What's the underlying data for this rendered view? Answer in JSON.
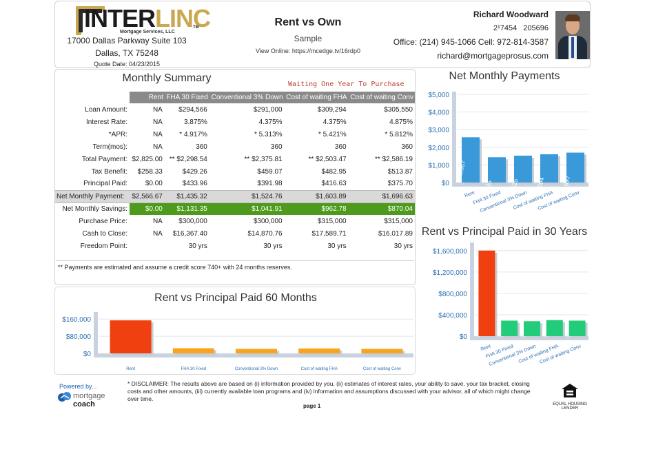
{
  "header": {
    "logo_text_a": "INTER",
    "logo_text_b": "LINC",
    "logo_sub": "Mortgage Services, LLC",
    "logo_tm": "TM",
    "address1": "17000 Dallas Parkway Suite 103",
    "address2": "Dallas, TX 75248",
    "quote_date": "Quote Date: 04/23/2015",
    "title": "Rent vs Own",
    "subtitle": "Sample",
    "view_online": "View Online: https://mcedge.tv/16rdp0",
    "agent_name": "Richard Woodward",
    "agent_nums": "2¹7454 205696",
    "agent_phone": "Office: (214) 945-1066 Cell: 972-814-3587",
    "agent_email": "richard@mortgageprosus.com"
  },
  "summary": {
    "title": "Monthly Summary",
    "waiting": "Waiting One Year To Purchase",
    "columns": [
      "Rent",
      "FHA 30 Fixed",
      "Conventional 3% Down",
      "Cost of waiting FHA",
      "Cost of waiting Conv"
    ],
    "rows": [
      {
        "label": "Loan Amount:",
        "values": [
          "NA",
          "$294,566",
          "$291,000",
          "$309,294",
          "$305,550"
        ]
      },
      {
        "label": "Interest Rate:",
        "values": [
          "NA",
          "3.875%",
          "4.375%",
          "4.375%",
          "4.875%"
        ]
      },
      {
        "label": "*APR:",
        "values": [
          "NA",
          "* 4.917%",
          "* 5.313%",
          "* 5.421%",
          "* 5.812%"
        ]
      },
      {
        "label": "Term(mos):",
        "values": [
          "NA",
          "360",
          "360",
          "360",
          "360"
        ]
      },
      {
        "label": "Total Payment:",
        "values": [
          "$2,825.00",
          "** $2,298.54",
          "** $2,375.81",
          "** $2,503.47",
          "** $2,586.19"
        ]
      },
      {
        "label": "Tax Benefit:",
        "values": [
          "$258.33",
          "$429.26",
          "$459.07",
          "$482.95",
          "$513.87"
        ]
      },
      {
        "label": "Principal Paid:",
        "values": [
          "$0.00",
          "$433.96",
          "$391.98",
          "$416.63",
          "$375.70"
        ]
      }
    ],
    "net_row": {
      "label": "Net Monthly Payment:",
      "values": [
        "$2,566.67",
        "$1,435.32",
        "$1,524.76",
        "$1,603.89",
        "$1,696.63"
      ]
    },
    "savings_row": {
      "label": "Net Monthly Savings:",
      "values": [
        "$0.00",
        "$1,131.35",
        "$1,041.91",
        "$962.78",
        "$870.04"
      ]
    },
    "rows_after": [
      {
        "label": "Purchase Price:",
        "values": [
          "NA",
          "$300,000",
          "$300,000",
          "$315,000",
          "$315,000"
        ]
      },
      {
        "label": "Cash to Close:",
        "values": [
          "NA",
          "$16,367.40",
          "$14,870.76",
          "$17,589.71",
          "$16,017.89"
        ]
      },
      {
        "label": "Freedom Point:",
        "values": [
          "",
          "30 yrs",
          "30 yrs",
          "30 yrs",
          "30 yrs"
        ]
      }
    ],
    "note": "** Payments are estimated and assume a credit score 740+ with 24 months reserves."
  },
  "chart_data": [
    {
      "type": "bar",
      "title": "Net Monthly Payments",
      "categories": [
        "Rent",
        "FHA 30 Fixed",
        "Conventional 3% Down",
        "Cost of waiting FHA",
        "Cost of waiting Conv"
      ],
      "values": [
        2567,
        1435,
        1525,
        1604,
        1697
      ],
      "data_labels": [
        "$2,567",
        "$1,435",
        "$1,525",
        "$1,604",
        "$1,697"
      ],
      "yticks": [
        "$0",
        "$1,000",
        "$2,000",
        "$3,000",
        "$4,000",
        "$5,000"
      ],
      "ylim": [
        0,
        5000
      ],
      "colors": [
        "#3a9ad9",
        "#3a9ad9",
        "#3a9ad9",
        "#3a9ad9",
        "#3a9ad9"
      ]
    },
    {
      "type": "bar",
      "title": "Rent vs Principal Paid in 30 Years",
      "categories": [
        "Rent",
        "FHA 30 Fixed",
        "Conventional 3% Down",
        "Cost of waiting FHA",
        "Cost of waiting Conv"
      ],
      "values": [
        1600000,
        290000,
        280000,
        300000,
        290000
      ],
      "yticks": [
        "$0",
        "$400,000",
        "$800,000",
        "$1,200,000",
        "$1,600,000"
      ],
      "ylim": [
        0,
        1700000
      ],
      "colors": [
        "#f04010",
        "#22cc7a",
        "#22cc7a",
        "#22cc7a",
        "#22cc7a"
      ]
    },
    {
      "type": "bar",
      "title": "Rent vs Principal Paid 60 Months",
      "categories": [
        "Rent",
        "FHA 30 Fixed",
        "Conventional 3% Down",
        "Cost of waiting FHA",
        "Cost of waiting Conv"
      ],
      "values": [
        154000,
        24000,
        21000,
        23000,
        21000
      ],
      "yticks": [
        "$0",
        "$80,000",
        "$160,000"
      ],
      "ylim": [
        0,
        180000
      ],
      "colors": [
        "#f04010",
        "#f8a41f",
        "#f8a41f",
        "#f8a41f",
        "#f8a41f"
      ]
    }
  ],
  "footer": {
    "powered_by": "Powered by...",
    "mc_a": "mortgage",
    "mc_b": "coach",
    "disclaimer": "* DISCLAIMER: The results above are based on (i) information provided by you, (ii) estimates of interest rates, your ability to save, your tax bracket, closing costs and other amounts, (iii) currently available loan programs and (iv) information and assumptions discussed with your advisor, all of which might change over time.",
    "page": "page 1",
    "eho_text": "EQUAL HOUSING LENDER"
  }
}
